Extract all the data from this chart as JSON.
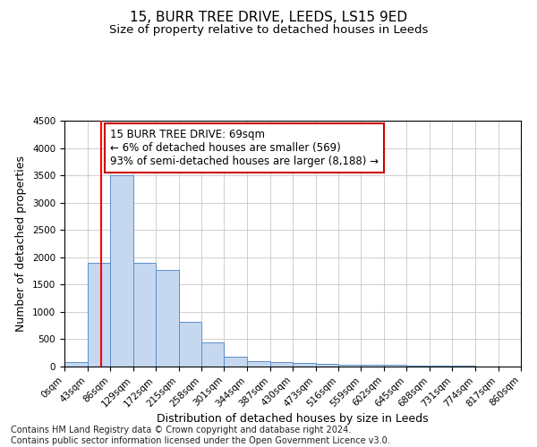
{
  "title": "15, BURR TREE DRIVE, LEEDS, LS15 9ED",
  "subtitle": "Size of property relative to detached houses in Leeds",
  "xlabel": "Distribution of detached houses by size in Leeds",
  "ylabel": "Number of detached properties",
  "footer_line1": "Contains HM Land Registry data © Crown copyright and database right 2024.",
  "footer_line2": "Contains public sector information licensed under the Open Government Licence v3.0.",
  "annotation_line1": "15 BURR TREE DRIVE: 69sqm",
  "annotation_line2": "← 6% of detached houses are smaller (569)",
  "annotation_line3": "93% of semi-detached houses are larger (8,188) →",
  "property_size": 69,
  "red_line_x": 69,
  "bar_edges": [
    0,
    43,
    86,
    129,
    172,
    215,
    258,
    301,
    344,
    387,
    430,
    473,
    516,
    559,
    602,
    645,
    688,
    731,
    774,
    817,
    860
  ],
  "bar_heights": [
    75,
    1900,
    3500,
    1900,
    1775,
    825,
    440,
    175,
    100,
    75,
    60,
    50,
    40,
    30,
    25,
    20,
    15,
    10,
    8,
    8
  ],
  "bar_color": "#c5d8f0",
  "bar_edge_color": "#5b8fc9",
  "red_line_color": "#ff0000",
  "annotation_box_color": "#cc0000",
  "background_color": "#ffffff",
  "grid_color": "#c8c8c8",
  "ylim": [
    0,
    4500
  ],
  "xlim": [
    0,
    860
  ],
  "title_fontsize": 11,
  "subtitle_fontsize": 9.5,
  "axis_label_fontsize": 9,
  "tick_label_fontsize": 7.5,
  "annotation_fontsize": 8.5,
  "footer_fontsize": 7
}
